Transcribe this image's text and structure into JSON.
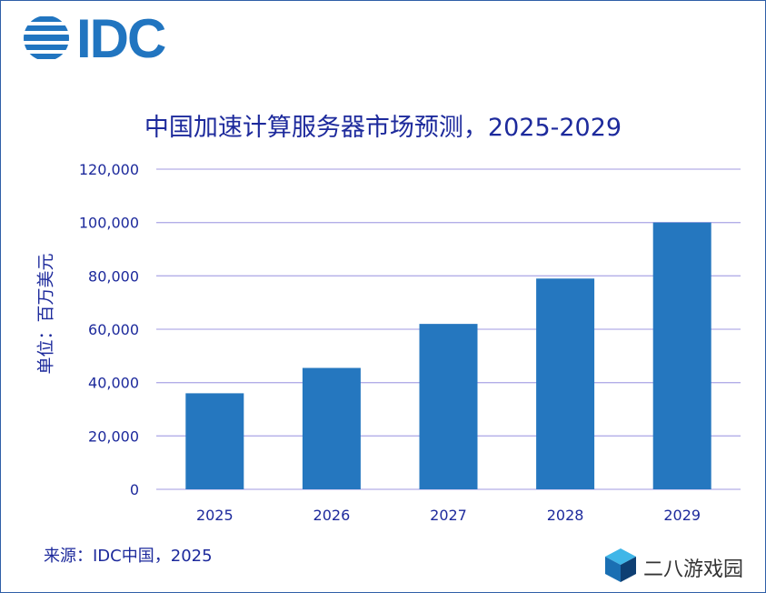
{
  "brand": {
    "logo_text": "IDC"
  },
  "chart_data": {
    "type": "bar",
    "title": "中国加速计算服务器市场预测，2025-2029",
    "ylabel": "单位：百万美元",
    "xlabel": "",
    "categories": [
      "2025",
      "2026",
      "2027",
      "2028",
      "2029"
    ],
    "values": [
      36000,
      45500,
      62000,
      79000,
      100000
    ],
    "ylim": [
      0,
      120000
    ],
    "yticks": [
      0,
      20000,
      40000,
      60000,
      80000,
      100000,
      120000
    ],
    "ytick_labels": [
      "0",
      "20,000",
      "40,000",
      "60,000",
      "80,000",
      "100,000",
      "120,000"
    ],
    "grid": true,
    "bar_color": "#2577bf",
    "grid_color": "#b3aee8",
    "text_color": "#1d2a9c"
  },
  "source": "来源：IDC中国，2025",
  "watermark": {
    "text": "二八游戏园"
  }
}
